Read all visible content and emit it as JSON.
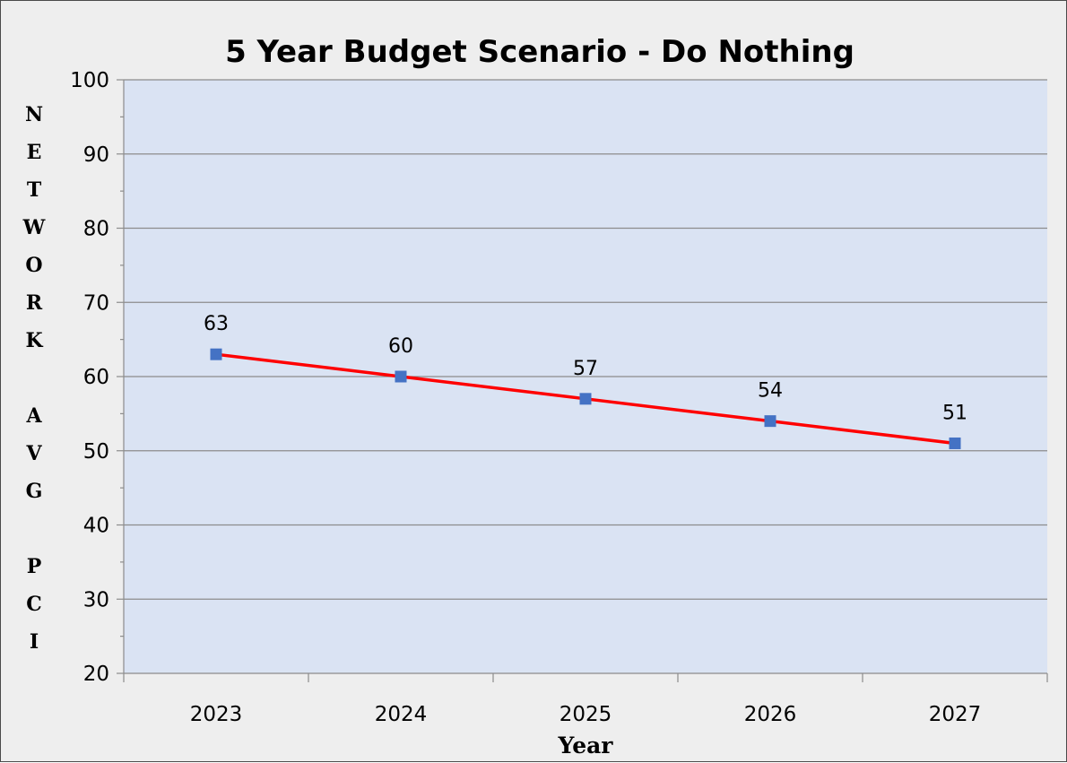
{
  "chart_data": {
    "type": "line",
    "title": "5 Year Budget Scenario - Do Nothing",
    "xlabel": "Year",
    "ylabel": "NETWORK AVG PCI",
    "categories": [
      "2023",
      "2024",
      "2025",
      "2026",
      "2027"
    ],
    "series": [
      {
        "values": [
          63,
          60,
          57,
          54,
          51
        ],
        "line_color": "#ff0000",
        "marker_color": "#4472c4",
        "marker": "square"
      }
    ],
    "data_labels": [
      "63",
      "60",
      "57",
      "54",
      "51"
    ],
    "ylim": [
      20,
      100
    ],
    "y_ticks": [
      20,
      30,
      40,
      50,
      60,
      70,
      80,
      90,
      100
    ],
    "grid": true,
    "legend": "none",
    "plot_background": "#dae3f3",
    "chart_background": "#eeeeee"
  }
}
